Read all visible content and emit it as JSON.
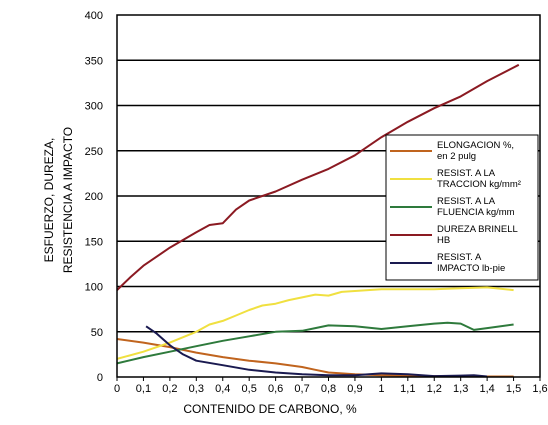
{
  "chart_data": {
    "type": "line",
    "title": "",
    "xlabel": "CONTENIDO DE CARBONO, %",
    "ylabel_lines": [
      "ESFUERZO, DUREZA,",
      "RESISTENCIA A IMPACTO"
    ],
    "xlim": [
      0,
      1.6
    ],
    "ylim": [
      0,
      400
    ],
    "x_ticks": [
      0,
      0.1,
      0.2,
      0.3,
      0.4,
      0.5,
      0.6,
      0.7,
      0.8,
      0.9,
      1.0,
      1.1,
      1.2,
      1.3,
      1.4,
      1.5,
      1.6
    ],
    "x_tick_labels": [
      "0",
      "0,1",
      "0,2",
      "0,3",
      "0,4",
      "0,5",
      "0,6",
      "0,7",
      "0,8",
      "0,9",
      "1",
      "1,1",
      "1,2",
      "1,3",
      "1,4",
      "1,5",
      "1,6"
    ],
    "y_ticks": [
      0,
      50,
      100,
      150,
      200,
      250,
      300,
      350,
      400
    ],
    "y_tick_labels": [
      "0",
      "50",
      "100",
      "150",
      "200",
      "250",
      "300",
      "350",
      "400"
    ],
    "grid": "horizontal",
    "legend_position": "right",
    "series": [
      {
        "name_lines": [
          "ELONGACION %,",
          "en 2 pulg"
        ],
        "color": "#c0641e",
        "points": [
          [
            0,
            42
          ],
          [
            0.1,
            38
          ],
          [
            0.2,
            33
          ],
          [
            0.3,
            27
          ],
          [
            0.4,
            22
          ],
          [
            0.5,
            18
          ],
          [
            0.6,
            15
          ],
          [
            0.7,
            11
          ],
          [
            0.75,
            8
          ],
          [
            0.8,
            5
          ],
          [
            0.9,
            3
          ],
          [
            1.0,
            2
          ],
          [
            1.1,
            1.5
          ],
          [
            1.2,
            1
          ],
          [
            1.3,
            1
          ],
          [
            1.4,
            0.5
          ],
          [
            1.5,
            0.5
          ]
        ]
      },
      {
        "name_lines": [
          "RESIST. A LA",
          "TRACCION kg/mm²"
        ],
        "color": "#f0e040",
        "points": [
          [
            0,
            20
          ],
          [
            0.1,
            28
          ],
          [
            0.2,
            38
          ],
          [
            0.3,
            50
          ],
          [
            0.35,
            58
          ],
          [
            0.4,
            62
          ],
          [
            0.45,
            68
          ],
          [
            0.5,
            74
          ],
          [
            0.55,
            79
          ],
          [
            0.6,
            81
          ],
          [
            0.65,
            85
          ],
          [
            0.7,
            88
          ],
          [
            0.75,
            91
          ],
          [
            0.8,
            90
          ],
          [
            0.85,
            94
          ],
          [
            0.9,
            95
          ],
          [
            1.0,
            97
          ],
          [
            1.1,
            97
          ],
          [
            1.2,
            97
          ],
          [
            1.3,
            98
          ],
          [
            1.4,
            99
          ],
          [
            1.5,
            96
          ]
        ]
      },
      {
        "name_lines": [
          "RESIST. A LA",
          "FLUENCIA kg/mm"
        ],
        "color": "#2e7a3c",
        "points": [
          [
            0,
            15
          ],
          [
            0.1,
            22
          ],
          [
            0.2,
            28
          ],
          [
            0.3,
            34
          ],
          [
            0.4,
            40
          ],
          [
            0.5,
            45
          ],
          [
            0.6,
            50
          ],
          [
            0.7,
            51
          ],
          [
            0.75,
            54
          ],
          [
            0.8,
            57
          ],
          [
            0.9,
            56
          ],
          [
            1.0,
            53
          ],
          [
            1.1,
            56
          ],
          [
            1.2,
            59
          ],
          [
            1.25,
            60
          ],
          [
            1.3,
            59
          ],
          [
            1.35,
            52
          ],
          [
            1.4,
            54
          ],
          [
            1.5,
            58
          ]
        ]
      },
      {
        "name_lines": [
          "DUREZA BRINELL",
          "HB"
        ],
        "color": "#8b1a22",
        "points": [
          [
            0,
            96
          ],
          [
            0.05,
            110
          ],
          [
            0.1,
            123
          ],
          [
            0.2,
            143
          ],
          [
            0.3,
            160
          ],
          [
            0.35,
            168
          ],
          [
            0.4,
            170
          ],
          [
            0.45,
            185
          ],
          [
            0.5,
            195
          ],
          [
            0.6,
            205
          ],
          [
            0.7,
            218
          ],
          [
            0.8,
            230
          ],
          [
            0.9,
            245
          ],
          [
            0.95,
            255
          ],
          [
            1.0,
            265
          ],
          [
            1.1,
            282
          ],
          [
            1.2,
            297
          ],
          [
            1.3,
            310
          ],
          [
            1.4,
            327
          ],
          [
            1.5,
            342
          ],
          [
            1.52,
            345
          ]
        ]
      },
      {
        "name_lines": [
          "RESIST. A",
          "IMPACTO lb-pie"
        ],
        "color": "#1a1a50",
        "points": [
          [
            0.11,
            56
          ],
          [
            0.15,
            48
          ],
          [
            0.2,
            35
          ],
          [
            0.25,
            25
          ],
          [
            0.3,
            18
          ],
          [
            0.4,
            13
          ],
          [
            0.5,
            8
          ],
          [
            0.6,
            5
          ],
          [
            0.7,
            3
          ],
          [
            0.8,
            2
          ],
          [
            0.9,
            2
          ],
          [
            1.0,
            4
          ],
          [
            1.1,
            3
          ],
          [
            1.2,
            1
          ],
          [
            1.3,
            1.5
          ],
          [
            1.35,
            2
          ],
          [
            1.4,
            0.5
          ]
        ]
      }
    ]
  }
}
